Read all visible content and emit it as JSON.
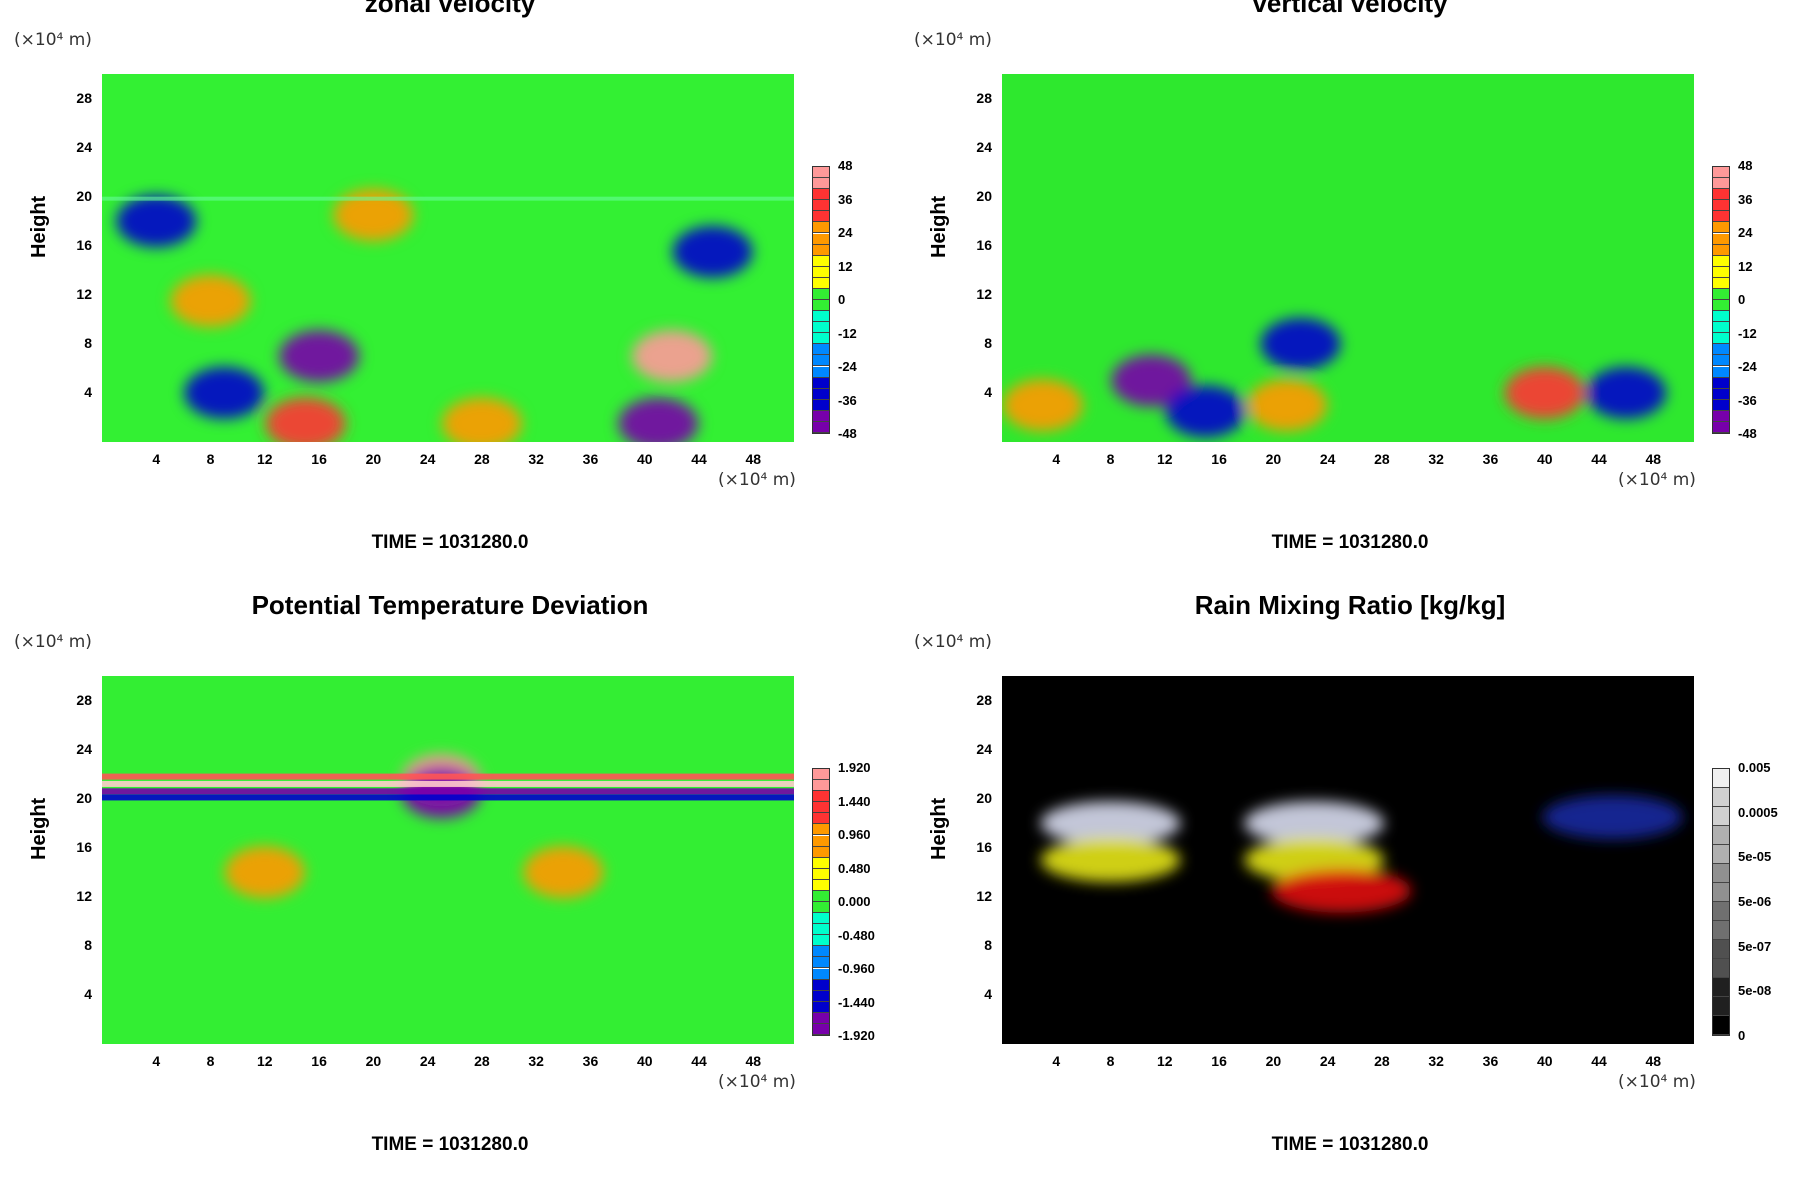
{
  "figure": {
    "time_label": "TIME = 1031280.0"
  },
  "panels": [
    {
      "title": "zonal velocity",
      "ylabel": "Height",
      "y_unit": "(×10⁴ m)",
      "x_unit": "(×10⁴ m)",
      "colorbar_labels": [
        "48",
        "36",
        "24",
        "12",
        "0",
        "-12",
        "-24",
        "-36",
        "-48"
      ],
      "palette": "rainbow",
      "background": "#33f033"
    },
    {
      "title": "vertical velocity",
      "ylabel": "Height",
      "y_unit": "(×10⁴ m)",
      "x_unit": "(×10⁴ m)",
      "colorbar_labels": [
        "48",
        "36",
        "24",
        "12",
        "0",
        "-12",
        "-24",
        "-36",
        "-48"
      ],
      "palette": "rainbow",
      "background": "#2ee82e"
    },
    {
      "title": "Potential Temperature Deviation",
      "ylabel": "Height",
      "y_unit": "(×10⁴ m)",
      "x_unit": "(×10⁴ m)",
      "colorbar_labels": [
        "1.920",
        "1.440",
        "0.960",
        "0.480",
        "0.000",
        "-0.480",
        "-0.960",
        "-1.440",
        "-1.920"
      ],
      "palette": "rainbow",
      "background": "#33ee33"
    },
    {
      "title": "Rain Mixing Ratio [kg/kg]",
      "ylabel": "Height",
      "y_unit": "(×10⁴ m)",
      "x_unit": "(×10⁴ m)",
      "colorbar_labels": [
        "0.005",
        "0.0005",
        "5e-05",
        "5e-06",
        "5e-07",
        "5e-08",
        "0"
      ],
      "palette": "gray",
      "background": "#000000"
    }
  ],
  "chart_data": [
    {
      "type": "heatmap",
      "title": "zonal velocity",
      "xlabel": "",
      "ylabel": "Height",
      "x_ticks": [
        4,
        8,
        12,
        16,
        20,
        24,
        28,
        32,
        36,
        40,
        44,
        48
      ],
      "y_ticks": [
        4,
        8,
        12,
        16,
        20,
        24,
        28
      ],
      "xlim": [
        0,
        51
      ],
      "ylim": [
        0,
        30
      ],
      "color_range": [
        -48,
        48
      ],
      "features": [
        {
          "x": 42,
          "y": 7,
          "value": 48
        },
        {
          "x": 15,
          "y": 1.5,
          "value": 40
        },
        {
          "x": 28,
          "y": 1.5,
          "value": 30
        },
        {
          "x": 8,
          "y": 11.5,
          "value": 28
        },
        {
          "x": 16,
          "y": 7,
          "value": -44
        },
        {
          "x": 41,
          "y": 1.5,
          "value": -48
        },
        {
          "x": 9,
          "y": 4,
          "value": -40
        },
        {
          "x": 4,
          "y": 18,
          "value": -36
        },
        {
          "x": 45,
          "y": 15.5,
          "value": -30
        },
        {
          "x": 20,
          "y": 18.5,
          "value": 30
        }
      ]
    },
    {
      "type": "heatmap",
      "title": "vertical velocity",
      "xlabel": "",
      "ylabel": "Height",
      "x_ticks": [
        4,
        8,
        12,
        16,
        20,
        24,
        28,
        32,
        36,
        40,
        44,
        48
      ],
      "y_ticks": [
        4,
        8,
        12,
        16,
        20,
        24,
        28
      ],
      "xlim": [
        0,
        51
      ],
      "ylim": [
        0,
        30
      ],
      "color_range": [
        -48,
        48
      ],
      "features": [
        {
          "x": 40,
          "y": 4,
          "value": 40
        },
        {
          "x": 21,
          "y": 3,
          "value": 30
        },
        {
          "x": 11,
          "y": 5,
          "value": -44
        },
        {
          "x": 46,
          "y": 4,
          "value": -40
        },
        {
          "x": 22,
          "y": 8,
          "value": -36
        },
        {
          "x": 3,
          "y": 3,
          "value": 30
        },
        {
          "x": 15,
          "y": 2.5,
          "value": -30
        }
      ]
    },
    {
      "type": "heatmap",
      "title": "Potential Temperature Deviation",
      "xlabel": "",
      "ylabel": "Height",
      "x_ticks": [
        4,
        8,
        12,
        16,
        20,
        24,
        28,
        32,
        36,
        40,
        44,
        48
      ],
      "y_ticks": [
        4,
        8,
        12,
        16,
        20,
        24,
        28
      ],
      "xlim": [
        0,
        51
      ],
      "ylim": [
        0,
        30
      ],
      "color_range": [
        -1.92,
        1.92
      ],
      "features": [
        {
          "x": 25,
          "y": 21.5,
          "value": 1.92
        },
        {
          "x": 25,
          "y": 20.5,
          "value": -1.92
        },
        {
          "x": 12,
          "y": 14,
          "value": 1.2
        },
        {
          "x": 34,
          "y": 14,
          "value": 0.96
        }
      ]
    },
    {
      "type": "heatmap",
      "title": "Rain Mixing Ratio [kg/kg]",
      "xlabel": "",
      "ylabel": "Height",
      "x_ticks": [
        4,
        8,
        12,
        16,
        20,
        24,
        28,
        32,
        36,
        40,
        44,
        48
      ],
      "y_ticks": [
        4,
        8,
        12,
        16,
        20,
        24,
        28
      ],
      "xlim": [
        0,
        51
      ],
      "ylim": [
        0,
        30
      ],
      "color_levels": [
        "0",
        "5e-08",
        "5e-07",
        "5e-06",
        "5e-05",
        "0.0005",
        "0.005"
      ],
      "features": [
        {
          "x": 8,
          "y": 18,
          "level": "0.005"
        },
        {
          "x": 23,
          "y": 18,
          "level": "0.005"
        },
        {
          "x": 8,
          "y": 15,
          "level": "5e-05"
        },
        {
          "x": 23,
          "y": 15,
          "level": "5e-05"
        },
        {
          "x": 25,
          "y": 12.5,
          "level": "5e-06"
        },
        {
          "x": 45,
          "y": 18.5,
          "level": "5e-07"
        }
      ]
    }
  ]
}
